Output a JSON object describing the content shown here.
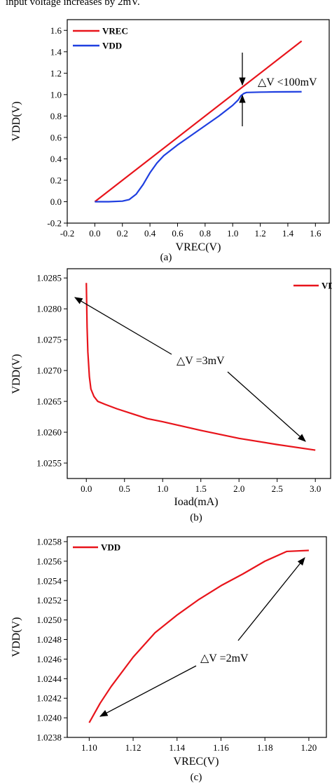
{
  "header_text": "input voltage increases by 2mV.",
  "chart_data": [
    {
      "type": "line",
      "caption": "(a)",
      "xlabel": "VREC(V)",
      "ylabel": "VDD(V)",
      "xlim": [
        -0.2,
        1.7
      ],
      "ylim": [
        -0.2,
        1.7
      ],
      "xticks": [
        -0.2,
        0.0,
        0.2,
        0.4,
        0.6,
        0.8,
        1.0,
        1.2,
        1.4,
        1.6
      ],
      "xtick_labels": [
        "-0.2",
        "0.0",
        "0.2",
        "0.4",
        "0.6",
        "0.8",
        "1.0",
        "1.2",
        "1.4",
        "1.6"
      ],
      "yticks": [
        -0.2,
        0.0,
        0.2,
        0.4,
        0.6,
        0.8,
        1.0,
        1.2,
        1.4,
        1.6
      ],
      "ytick_labels": [
        "-0.2",
        "0.0",
        "0.2",
        "0.4",
        "0.6",
        "0.8",
        "1.0",
        "1.2",
        "1.4",
        "1.6"
      ],
      "legend_position": "top-left",
      "grid": false,
      "series": [
        {
          "name": "VREC",
          "color": "#e8141b",
          "x": [
            0.0,
            1.5
          ],
          "y": [
            0.0,
            1.5
          ]
        },
        {
          "name": "VDD",
          "color": "#1f3fe0",
          "x": [
            0.0,
            0.1,
            0.2,
            0.25,
            0.3,
            0.35,
            0.4,
            0.45,
            0.5,
            0.6,
            0.7,
            0.8,
            0.9,
            1.0,
            1.04,
            1.06,
            1.08,
            1.1,
            1.2,
            1.3,
            1.4,
            1.5
          ],
          "y": [
            0.0,
            0.0,
            0.005,
            0.02,
            0.07,
            0.16,
            0.27,
            0.36,
            0.43,
            0.53,
            0.62,
            0.71,
            0.8,
            0.9,
            0.95,
            0.99,
            1.01,
            1.02,
            1.023,
            1.025,
            1.026,
            1.027
          ]
        }
      ],
      "annotations": [
        {
          "text": "△V <100mV"
        }
      ]
    },
    {
      "type": "line",
      "caption": "(b)",
      "xlabel": "Ioad(mA)",
      "ylabel": "VDD(V)",
      "xlim": [
        -0.25,
        3.2
      ],
      "ylim": [
        1.02525,
        1.02865
      ],
      "xticks": [
        0.0,
        0.5,
        1.0,
        1.5,
        2.0,
        2.5,
        3.0
      ],
      "xtick_labels": [
        "0.0",
        "0.5",
        "1.0",
        "1.5",
        "2.0",
        "2.5",
        "3.0"
      ],
      "yticks": [
        1.0255,
        1.026,
        1.0265,
        1.027,
        1.0275,
        1.028,
        1.0285
      ],
      "ytick_labels": [
        "1.0255",
        "1.0260",
        "1.0265",
        "1.0270",
        "1.0275",
        "1.0280",
        "1.0285"
      ],
      "legend_position": "top-right",
      "grid": false,
      "series": [
        {
          "name": "VDD",
          "color": "#e8141b",
          "x": [
            0.0,
            0.01,
            0.02,
            0.04,
            0.06,
            0.1,
            0.15,
            0.25,
            0.4,
            0.6,
            0.8,
            1.0,
            1.5,
            2.0,
            2.5,
            3.0
          ],
          "y": [
            1.02842,
            1.0277,
            1.0273,
            1.0269,
            1.0267,
            1.02658,
            1.0265,
            1.02645,
            1.02638,
            1.0263,
            1.02622,
            1.02617,
            1.02603,
            1.0259,
            1.0258,
            1.02571
          ]
        }
      ],
      "annotations": [
        {
          "text": "△V =3mV"
        }
      ]
    },
    {
      "type": "line",
      "caption": "(c)",
      "xlabel": "VREC(V)",
      "ylabel": "VDD(V)",
      "xlim": [
        1.09,
        1.208
      ],
      "ylim": [
        1.0238,
        1.02585
      ],
      "xticks": [
        1.1,
        1.12,
        1.14,
        1.16,
        1.18,
        1.2
      ],
      "xtick_labels": [
        "1.10",
        "1.12",
        "1.14",
        "1.16",
        "1.18",
        "1.20"
      ],
      "yticks": [
        1.0238,
        1.024,
        1.0242,
        1.0244,
        1.0246,
        1.0248,
        1.025,
        1.0252,
        1.0254,
        1.0256,
        1.0258
      ],
      "ytick_labels": [
        "1.0238",
        "1.0240",
        "1.0242",
        "1.0244",
        "1.0246",
        "1.0248",
        "1.0250",
        "1.0252",
        "1.0254",
        "1.0256",
        "1.0258"
      ],
      "legend_position": "top-left",
      "grid": false,
      "series": [
        {
          "name": "VDD",
          "color": "#e8141b",
          "x": [
            1.1,
            1.105,
            1.11,
            1.12,
            1.13,
            1.14,
            1.15,
            1.16,
            1.17,
            1.18,
            1.19,
            1.2
          ],
          "y": [
            1.02395,
            1.02415,
            1.02432,
            1.02462,
            1.02487,
            1.02505,
            1.02521,
            1.02535,
            1.02547,
            1.0256,
            1.0257,
            1.02571
          ]
        }
      ],
      "annotations": [
        {
          "text": "△V =2mV"
        }
      ]
    }
  ]
}
